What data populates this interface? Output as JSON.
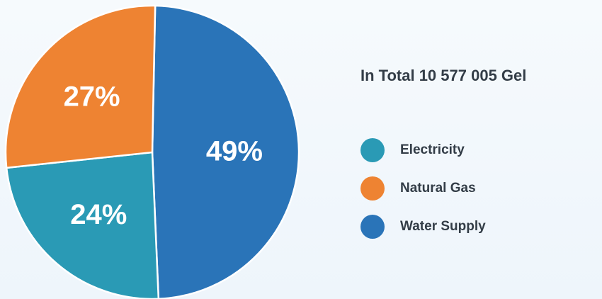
{
  "chart_data": {
    "type": "pie",
    "title": "In Total 10 577 005 Gel",
    "legend": "right",
    "slices": [
      {
        "name": "Electricity",
        "value": 24,
        "label": "24%",
        "color": "#2a9ab5"
      },
      {
        "name": "Natural Gas",
        "value": 27,
        "label": "27%",
        "color": "#ee8332"
      },
      {
        "name": "Water Supply",
        "value": 49,
        "label": "49%",
        "color": "#2a74b8"
      }
    ]
  }
}
